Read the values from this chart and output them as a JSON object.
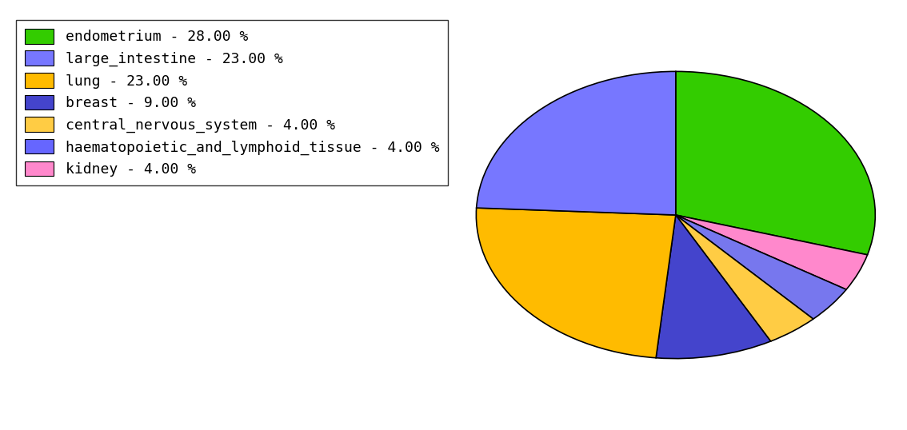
{
  "labels": [
    "endometrium - 28.00 %",
    "large_intestine - 23.00 %",
    "lung - 23.00 %",
    "breast - 9.00 %",
    "central_nervous_system - 4.00 %",
    "haematopoietic_and_lymphoid_tissue - 4.00 %",
    "kidney - 4.00 %"
  ],
  "legend_colors": [
    "#33cc00",
    "#7777ff",
    "#ffbb00",
    "#4444cc",
    "#ffcc44",
    "#6666ff",
    "#ff88cc"
  ],
  "pie_values": [
    28,
    4,
    4,
    4,
    9,
    23,
    23
  ],
  "pie_colors": [
    "#33cc00",
    "#ff88cc",
    "#7777ee",
    "#ffcc44",
    "#4444cc",
    "#ffbb00",
    "#7777ff"
  ],
  "background_color": "#ffffff",
  "legend_fontsize": 13,
  "startangle": 90,
  "ellipse_ratio": 0.72
}
